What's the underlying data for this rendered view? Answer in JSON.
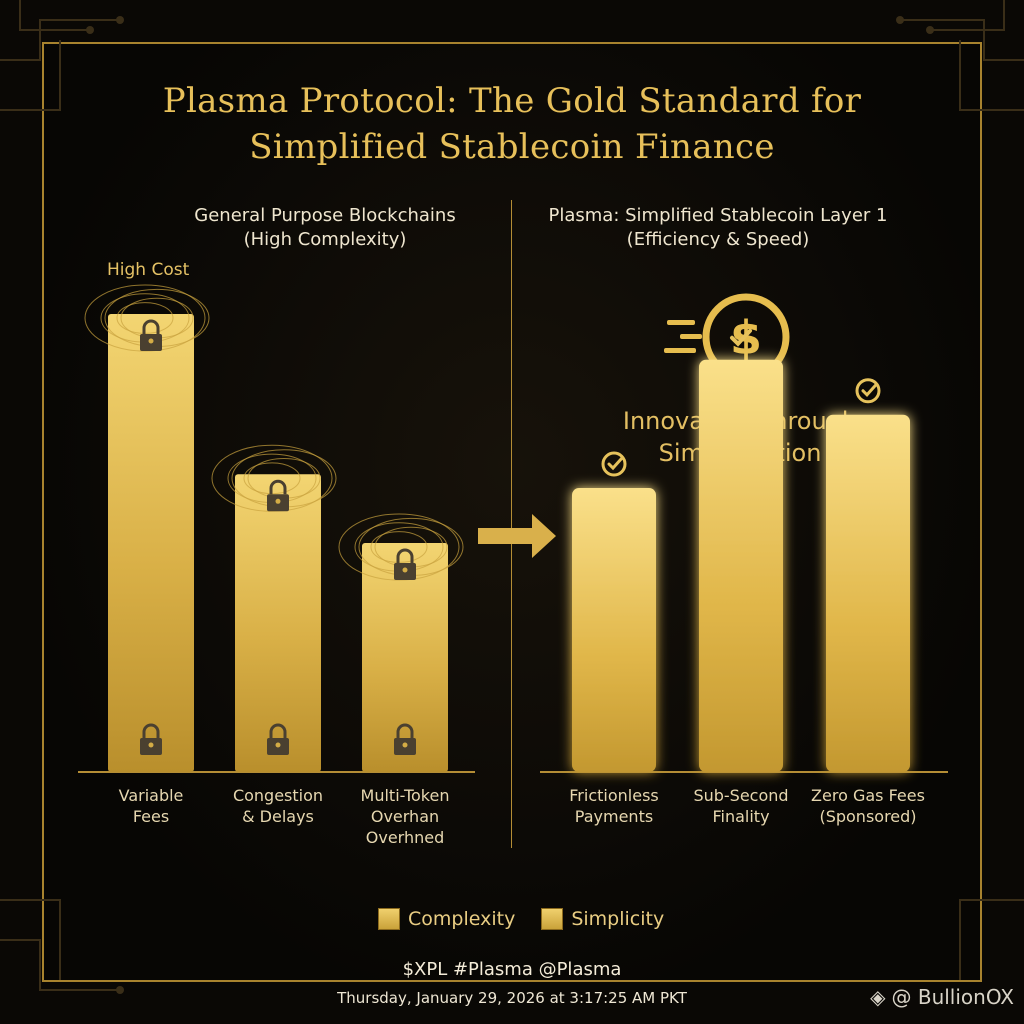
{
  "header": {
    "title_line1": "Plasma Protocol: The Gold Standard for",
    "title_line2": "Simplified Stablecoin Finance"
  },
  "left_panel": {
    "heading_line1": "General Purpose Blockchains",
    "heading_line2": "(High Complexity)",
    "annotation": "High Cost"
  },
  "right_panel": {
    "heading_line1": "Plasma: Simplified Stablecoin Layer 1",
    "heading_line2": "(Efficiency & Speed)",
    "tagline_line1": "Innovation Through",
    "tagline_line2": "Simplification",
    "icon": "dollar-coin-speed-icon"
  },
  "legend": {
    "items": [
      "Complexity",
      "Simplicity"
    ]
  },
  "footer": {
    "hashtags": "$XPL #Plasma @Plasma",
    "datetime": "Thursday, January 29, 2026 at 3:17:25 AM PKT",
    "brand": "@ BullionOX"
  },
  "chart_data": [
    {
      "type": "bar",
      "series_name": "Complexity",
      "categories": [
        [
          "Variable",
          "Fees"
        ],
        [
          "Congestion",
          "& Delays"
        ],
        [
          "Multi-Token",
          "Overhan",
          "Overhned"
        ]
      ],
      "values": [
        100,
        65,
        50
      ],
      "markers": [
        "lock-icon",
        "lock-icon",
        "lock-icon"
      ],
      "ylim": [
        0,
        100
      ]
    },
    {
      "type": "bar",
      "series_name": "Simplicity",
      "categories": [
        [
          "Frictionless",
          "Payments"
        ],
        [
          "Sub-Second",
          "Finality"
        ],
        [
          "Zero Gas Fees",
          "(Sponsored)"
        ]
      ],
      "values": [
        62,
        90,
        78
      ],
      "markers": [
        "check-circle-icon",
        "check-icon",
        "check-circle-icon"
      ],
      "ylim": [
        0,
        100
      ]
    }
  ],
  "colors": {
    "gold": "#e7c05a",
    "gold_dark": "#b8902f",
    "background": "#0a0805"
  }
}
